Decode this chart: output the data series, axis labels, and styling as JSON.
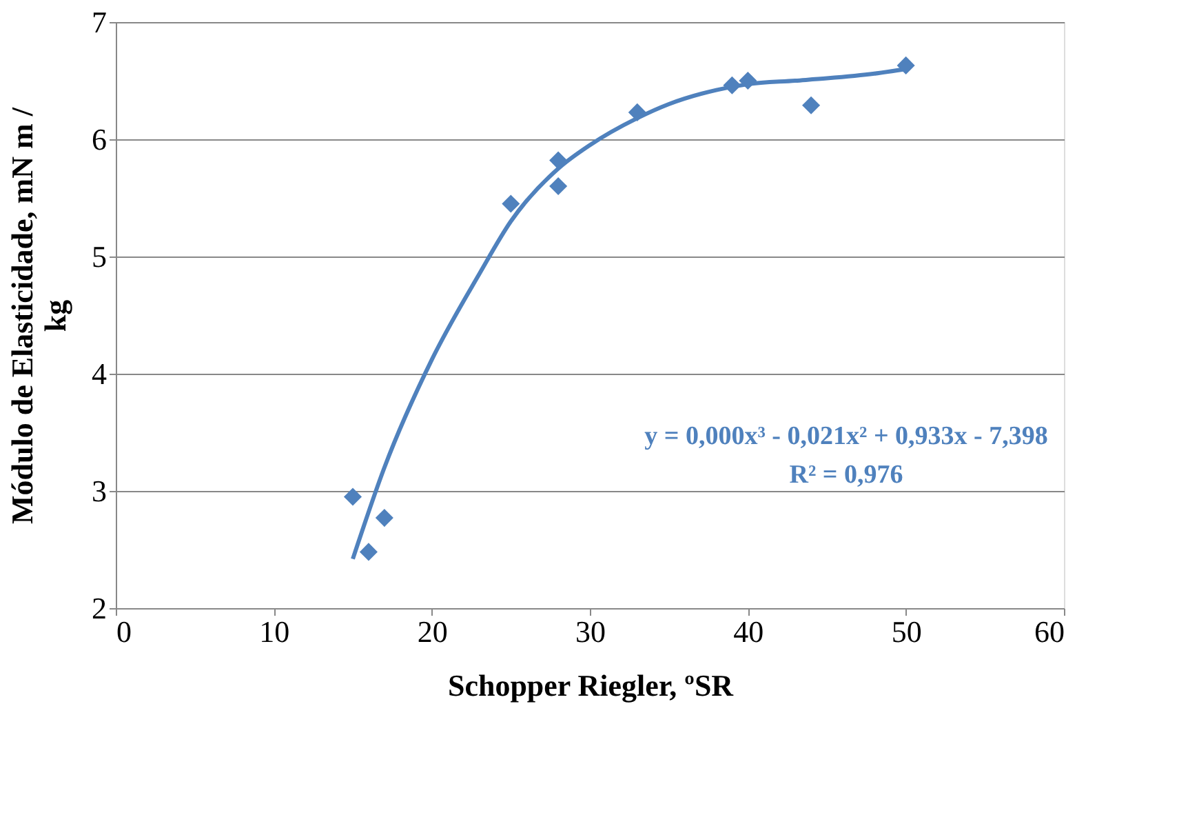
{
  "chart_data": {
    "type": "scatter",
    "xlabel": "Schopper Riegler, ºSR",
    "ylabel": "Módulo de Elasticidade, mN m / kg",
    "xlim": [
      0,
      60
    ],
    "xticks": [
      0,
      10,
      20,
      30,
      40,
      50,
      60
    ],
    "ylim": [
      2,
      7
    ],
    "yticks": [
      2,
      3,
      4,
      5,
      6,
      7
    ],
    "grid": "y",
    "legend": false,
    "series": [
      {
        "type": "line",
        "color": "#4f81bd",
        "marker": "none",
        "line_style": "solid",
        "x": [
          15,
          17,
          20,
          23,
          25,
          28,
          30,
          33,
          35,
          38,
          40,
          43,
          45,
          48,
          50
        ],
        "values": [
          2.42,
          3.2,
          4.12,
          4.85,
          5.3,
          5.75,
          5.95,
          6.18,
          6.3,
          6.42,
          6.47,
          6.5,
          6.52,
          6.56,
          6.6
        ]
      },
      {
        "color": "#4f81bd",
        "marker": "diamond",
        "x": [
          15,
          16,
          17,
          25,
          28,
          28,
          33,
          39,
          40,
          44,
          50
        ],
        "values": [
          2.95,
          2.48,
          2.77,
          5.45,
          5.82,
          5.6,
          6.23,
          6.46,
          6.5,
          6.29,
          6.63
        ]
      }
    ],
    "annotations": [
      "y = 0,000x³ - 0,021x² + 0,933x - 7,398",
      "R² = 0,976"
    ]
  }
}
